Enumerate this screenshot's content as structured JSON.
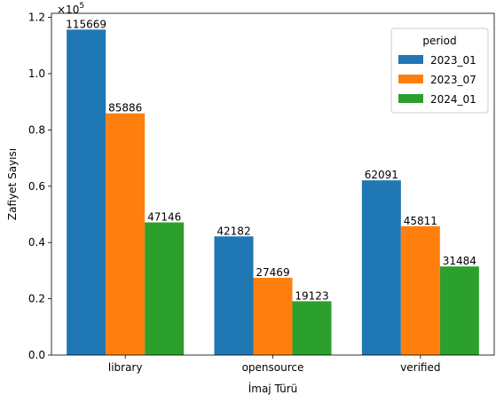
{
  "chart_data": {
    "type": "bar",
    "categories": [
      "library",
      "opensource",
      "verified"
    ],
    "series": [
      {
        "name": "2023_01",
        "color": "#1f77b4",
        "values": [
          115669,
          42182,
          62091
        ]
      },
      {
        "name": "2023_07",
        "color": "#ff7f0e",
        "values": [
          85886,
          27469,
          45811
        ]
      },
      {
        "name": "2024_01",
        "color": "#2ca02c",
        "values": [
          47146,
          19123,
          31484
        ]
      }
    ],
    "xlabel": "İmaj Türü",
    "ylabel": "Zafiyet Sayısı",
    "ylim": [
      0,
      120000
    ],
    "yticks": [
      0,
      20000,
      40000,
      60000,
      80000,
      100000,
      120000
    ],
    "ytick_labels": [
      "0.0",
      "0.2",
      "0.4",
      "0.6",
      "0.8",
      "1.0",
      "1.2"
    ],
    "scale_label": "×10",
    "scale_exponent": "5",
    "legend_title": "period",
    "legend_position": "top-right",
    "grid": false
  }
}
